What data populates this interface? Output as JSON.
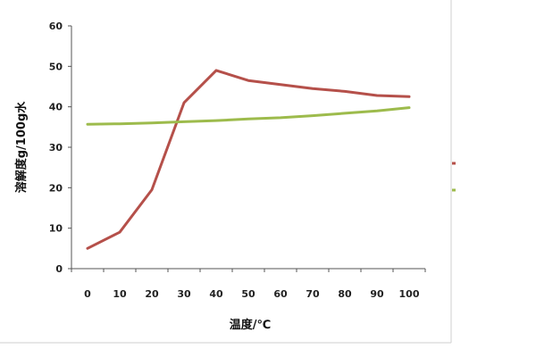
{
  "chart_data": {
    "type": "line",
    "xlabel": "温度/℃",
    "ylabel": "溶解度g/100g水",
    "x": [
      0,
      10,
      20,
      30,
      40,
      50,
      60,
      70,
      80,
      90,
      100
    ],
    "ylim": [
      0,
      60
    ],
    "yticks": [
      0,
      10,
      20,
      30,
      40,
      50,
      60
    ],
    "grid": false,
    "legend": "right",
    "series": [
      {
        "color": "#b5504a",
        "values": [
          5,
          9,
          19.5,
          41,
          49,
          46.5,
          45.5,
          44.5,
          43.8,
          42.8,
          42.5
        ]
      },
      {
        "color": "#9dbb4c",
        "values": [
          35.7,
          35.8,
          36.0,
          36.3,
          36.6,
          37.0,
          37.3,
          37.8,
          38.4,
          39.0,
          39.8
        ]
      }
    ]
  }
}
